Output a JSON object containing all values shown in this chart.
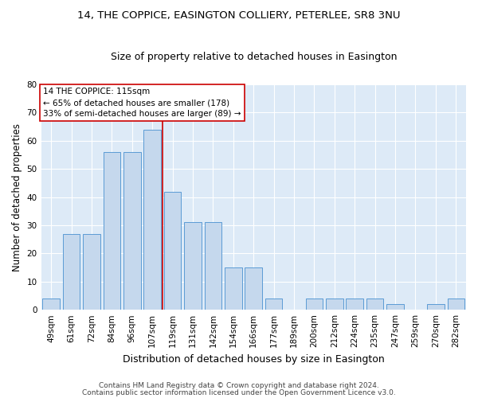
{
  "title": "14, THE COPPICE, EASINGTON COLLIERY, PETERLEE, SR8 3NU",
  "subtitle": "Size of property relative to detached houses in Easington",
  "xlabel": "Distribution of detached houses by size in Easington",
  "ylabel": "Number of detached properties",
  "categories": [
    "49sqm",
    "61sqm",
    "72sqm",
    "84sqm",
    "96sqm",
    "107sqm",
    "119sqm",
    "131sqm",
    "142sqm",
    "154sqm",
    "166sqm",
    "177sqm",
    "189sqm",
    "200sqm",
    "212sqm",
    "224sqm",
    "235sqm",
    "247sqm",
    "259sqm",
    "270sqm",
    "282sqm"
  ],
  "values": [
    4,
    27,
    27,
    56,
    56,
    64,
    42,
    31,
    31,
    15,
    15,
    4,
    0,
    4,
    4,
    4,
    4,
    2,
    0,
    2,
    4
  ],
  "bar_color": "#c5d8ed",
  "bar_edge_color": "#5b9bd5",
  "vline_x": 5.5,
  "vline_color": "#cc0000",
  "annotation_text": "14 THE COPPICE: 115sqm\n← 65% of detached houses are smaller (178)\n33% of semi-detached houses are larger (89) →",
  "annotation_box_color": "#ffffff",
  "annotation_box_edge": "#cc0000",
  "ylim": [
    0,
    80
  ],
  "yticks": [
    0,
    10,
    20,
    30,
    40,
    50,
    60,
    70,
    80
  ],
  "footer1": "Contains HM Land Registry data © Crown copyright and database right 2024.",
  "footer2": "Contains public sector information licensed under the Open Government Licence v3.0.",
  "bg_color": "#ddeaf7",
  "grid_color": "#ffffff",
  "fig_bg_color": "#ffffff",
  "title_fontsize": 9.5,
  "subtitle_fontsize": 9,
  "xlabel_fontsize": 9,
  "ylabel_fontsize": 8.5,
  "tick_fontsize": 7.5,
  "annotation_fontsize": 7.5,
  "footer_fontsize": 6.5
}
